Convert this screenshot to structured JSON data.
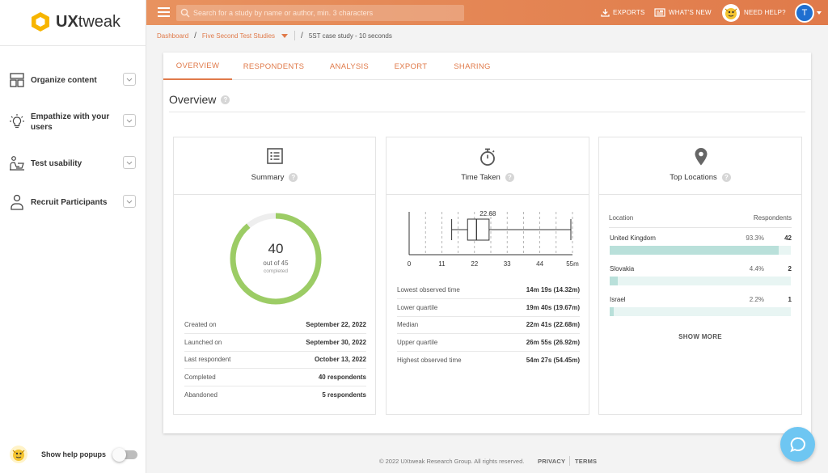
{
  "app": {
    "logo_text_bold": "UX",
    "logo_text_rest": "tweak"
  },
  "sidebar": {
    "items": [
      {
        "label": "Organize content",
        "icon": "layout-icon"
      },
      {
        "label": "Empathize with your users",
        "icon": "lightbulb-icon"
      },
      {
        "label": "Test usability",
        "icon": "person-laptop-icon"
      },
      {
        "label": "Recruit Participants",
        "icon": "person-icon"
      }
    ],
    "help_popups_label": "Show help popups"
  },
  "topbar": {
    "search_placeholder": "Search for a study by name or author, min. 3 characters",
    "exports_label": "EXPORTS",
    "whats_new_label": "WHAT'S NEW",
    "need_help_label": "NEED HELP?",
    "user_initial": "T"
  },
  "breadcrumb": {
    "home": "Dashboard",
    "parent": "Five Second Test Studies",
    "current": "5ST case study - 10 seconds"
  },
  "tabs": [
    {
      "label": "OVERVIEW",
      "active": true
    },
    {
      "label": "RESPONDENTS",
      "active": false
    },
    {
      "label": "ANALYSIS",
      "active": false
    },
    {
      "label": "EXPORT",
      "active": false
    },
    {
      "label": "SHARING",
      "active": false
    }
  ],
  "overview": {
    "title": "Overview",
    "help": "?"
  },
  "summary": {
    "title": "Summary",
    "completed": 40,
    "total": 45,
    "big_number": "40",
    "out_of_label": "out of 45",
    "completed_label": "completed",
    "rows": [
      {
        "key": "Created on",
        "value": "September 22, 2022"
      },
      {
        "key": "Launched on",
        "value": "September 30, 2022"
      },
      {
        "key": "Last respondent",
        "value": "October 13, 2022"
      },
      {
        "key": "Completed",
        "value": "40 respondents"
      },
      {
        "key": "Abandoned",
        "value": "5 respondents"
      }
    ]
  },
  "time_taken": {
    "title": "Time Taken",
    "rows": [
      {
        "key": "Lowest observed time",
        "value": "14m 19s (14.32m)"
      },
      {
        "key": "Lower quartile",
        "value": "19m 40s (19.67m)"
      },
      {
        "key": "Median",
        "value": "22m 41s (22.68m)"
      },
      {
        "key": "Upper quartile",
        "value": "26m 55s (26.92m)"
      },
      {
        "key": "Highest observed time",
        "value": "54m 27s (54.45m)"
      }
    ]
  },
  "chart_data": {
    "type": "boxplot",
    "unit": "m",
    "xlim": [
      0,
      55
    ],
    "x_ticks": [
      "0",
      "11",
      "22",
      "33",
      "44",
      "55m"
    ],
    "x_tick_values": [
      0,
      11,
      22,
      33,
      44,
      55
    ],
    "min": 14.32,
    "q1": 19.67,
    "median": 22.68,
    "q3": 26.92,
    "max": 54.45,
    "median_label": "22.68"
  },
  "locations": {
    "title": "Top Locations",
    "col_location": "Location",
    "col_respondents": "Respondents",
    "items": [
      {
        "name": "United Kingdom",
        "pct": "93.3%",
        "count": "42",
        "fraction": 0.933
      },
      {
        "name": "Slovakia",
        "pct": "4.4%",
        "count": "2",
        "fraction": 0.044
      },
      {
        "name": "Israel",
        "pct": "2.2%",
        "count": "1",
        "fraction": 0.022
      }
    ],
    "show_more": "SHOW MORE"
  },
  "footer": {
    "copyright": "© 2022 UXtweak Research Group. All rights reserved.",
    "privacy": "PRIVACY",
    "terms": "TERMS"
  },
  "colors": {
    "accent": "#e07a4a",
    "progress": "#9ccc65",
    "progress_track": "#eeeeee",
    "location_bar": "#b9e0da",
    "chat": "#6ec6f2"
  }
}
